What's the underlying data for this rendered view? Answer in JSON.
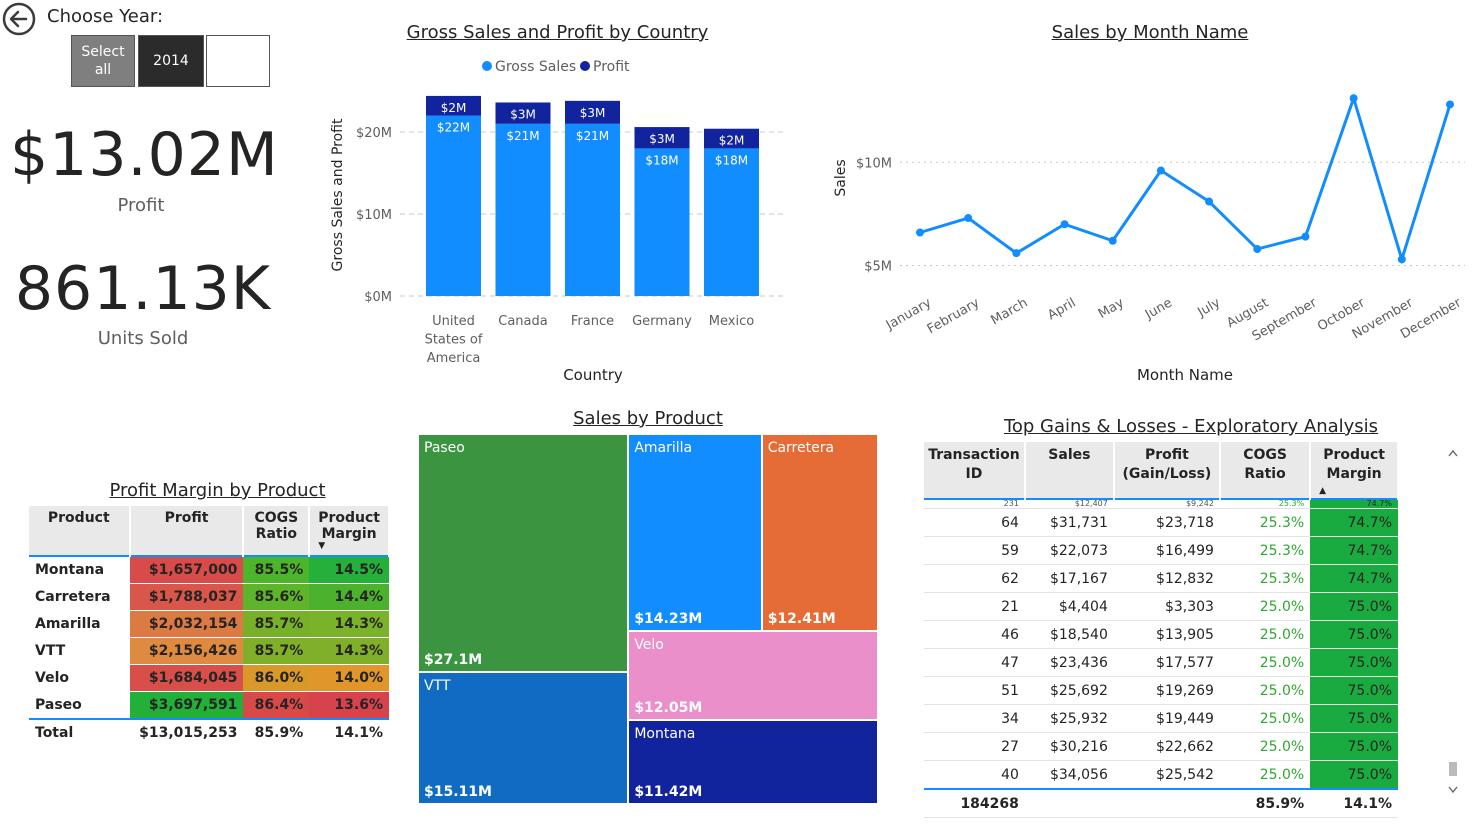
{
  "header": {
    "choose_year_label": "Choose Year:",
    "slicer": [
      {
        "label": "Select all",
        "selected": false
      },
      {
        "label": "2014",
        "selected": true
      },
      {
        "label": "",
        "selected": false
      }
    ]
  },
  "kpis": {
    "profit_value": "$13.02M",
    "profit_label": "Profit",
    "units_value": "861.13K",
    "units_label": "Units Sold"
  },
  "colors": {
    "gross_sales": "#118dff",
    "profit": "#12239e",
    "good": "#1aab40",
    "bad": "#d64550",
    "mid": "#e59b1c"
  },
  "gross_chart": {
    "title": "Gross Sales and Profit by Country",
    "legend": [
      "Gross Sales",
      "Profit"
    ],
    "xlabel": "Country",
    "ylabel": "Gross Sales and Profit",
    "yticks": [
      "$0M",
      "$10M",
      "$20M"
    ]
  },
  "month_chart": {
    "title": "Sales by Month Name",
    "xlabel": "Month Name",
    "ylabel": "Sales",
    "yticks": [
      "$5M",
      "$10M"
    ]
  },
  "chart_data": [
    {
      "type": "bar",
      "title": "Gross Sales and Profit by Country",
      "categories": [
        "United States of America",
        "Canada",
        "France",
        "Germany",
        "Mexico"
      ],
      "series": [
        {
          "name": "Gross Sales",
          "values": [
            22,
            21,
            21,
            18,
            18
          ],
          "labels": [
            "$22M",
            "$21M",
            "$21M",
            "$18M",
            "$18M"
          ]
        },
        {
          "name": "Profit",
          "values": [
            2.4,
            2.6,
            2.8,
            2.6,
            2.4
          ],
          "labels": [
            "$2M",
            "$3M",
            "$3M",
            "$3M",
            "$2M"
          ]
        }
      ],
      "stacked": true,
      "xlabel": "Country",
      "ylabel": "Gross Sales and Profit",
      "ylim": [
        0,
        25
      ],
      "grid": true,
      "legend_position": "top"
    },
    {
      "type": "line",
      "title": "Sales by Month Name",
      "categories": [
        "January",
        "February",
        "March",
        "April",
        "May",
        "June",
        "July",
        "August",
        "September",
        "October",
        "November",
        "December"
      ],
      "series": [
        {
          "values": [
            6.6,
            7.3,
            5.6,
            7.0,
            6.2,
            9.6,
            8.1,
            5.8,
            6.4,
            13.1,
            5.3,
            12.8
          ]
        }
      ],
      "xlabel": "Month Name",
      "ylabel": "Sales",
      "ylim": [
        4.3,
        13.5
      ],
      "grid": true
    },
    {
      "type": "treemap",
      "title": "Sales by Product",
      "items": [
        {
          "name": "Paseo",
          "value": 27.1,
          "label": "$27.1M",
          "color": "#3a9440"
        },
        {
          "name": "VTT",
          "value": 15.11,
          "label": "$15.11M",
          "color": "#116bc2"
        },
        {
          "name": "Amarilla",
          "value": 14.23,
          "label": "$14.23M",
          "color": "#118dff"
        },
        {
          "name": "Carretera",
          "value": 12.41,
          "label": "$12.41M",
          "color": "#e66c37"
        },
        {
          "name": "Velo",
          "value": 12.05,
          "label": "$12.05M",
          "color": "#eb8fcb"
        },
        {
          "name": "Montana",
          "value": 11.42,
          "label": "$11.42M",
          "color": "#12239e"
        }
      ]
    }
  ],
  "profit_margin": {
    "title": "Profit Margin by Product",
    "columns": [
      "Product",
      "Profit",
      "COGS Ratio",
      "Product Margin"
    ],
    "rows": [
      {
        "product": "Montana",
        "profit": "$1,657,000",
        "cogs": "85.5%",
        "margin": "14.5%",
        "profit_color": "#d94a4a",
        "cogs_color": "#4db52b",
        "margin_color": "#25b03c"
      },
      {
        "product": "Carretera",
        "profit": "$1,788,037",
        "cogs": "85.6%",
        "margin": "14.4%",
        "profit_color": "#d8574a",
        "cogs_color": "#5eb42a",
        "margin_color": "#4cb22e"
      },
      {
        "product": "Amarilla",
        "profit": "$2,032,154",
        "cogs": "85.7%",
        "margin": "14.3%",
        "profit_color": "#dc7a44",
        "cogs_color": "#78b129",
        "margin_color": "#7ab22a"
      },
      {
        "product": "VTT",
        "profit": "$2,156,426",
        "cogs": "85.7%",
        "margin": "14.3%",
        "profit_color": "#de8a40",
        "cogs_color": "#80b02a",
        "margin_color": "#80b02a"
      },
      {
        "product": "Velo",
        "profit": "$1,684,045",
        "cogs": "86.0%",
        "margin": "14.0%",
        "profit_color": "#d84f4a",
        "cogs_color": "#d9992a",
        "margin_color": "#e0962a"
      },
      {
        "product": "Paseo",
        "profit": "$3,697,591",
        "cogs": "86.4%",
        "margin": "13.6%",
        "profit_color": "#22b03a",
        "cogs_color": "#d84a4a",
        "margin_color": "#d6434d"
      }
    ],
    "total": {
      "label": "Total",
      "profit": "$13,015,253",
      "cogs": "85.9%",
      "margin": "14.1%"
    }
  },
  "top_gains": {
    "title": "Top Gains & Losses - Exploratory Analysis",
    "columns": [
      "Transaction ID",
      "Sales",
      "Profit (Gain/Loss)",
      "COGS Ratio",
      "Product Margin"
    ],
    "partial_row": {
      "id": "231",
      "sales": "$12,407",
      "profit": "$9,242",
      "cogs": "25.3%",
      "margin": "74.7%"
    },
    "rows": [
      {
        "id": "64",
        "sales": "$31,731",
        "profit": "$23,718",
        "cogs": "25.3%",
        "margin": "74.7%"
      },
      {
        "id": "59",
        "sales": "$22,073",
        "profit": "$16,499",
        "cogs": "25.3%",
        "margin": "74.7%"
      },
      {
        "id": "62",
        "sales": "$17,167",
        "profit": "$12,832",
        "cogs": "25.3%",
        "margin": "74.7%"
      },
      {
        "id": "21",
        "sales": "$4,404",
        "profit": "$3,303",
        "cogs": "25.0%",
        "margin": "75.0%"
      },
      {
        "id": "46",
        "sales": "$18,540",
        "profit": "$13,905",
        "cogs": "25.0%",
        "margin": "75.0%"
      },
      {
        "id": "47",
        "sales": "$23,436",
        "profit": "$17,577",
        "cogs": "25.0%",
        "margin": "75.0%"
      },
      {
        "id": "51",
        "sales": "$25,692",
        "profit": "$19,269",
        "cogs": "25.0%",
        "margin": "75.0%"
      },
      {
        "id": "34",
        "sales": "$25,932",
        "profit": "$19,449",
        "cogs": "25.0%",
        "margin": "75.0%"
      },
      {
        "id": "27",
        "sales": "$30,216",
        "profit": "$22,662",
        "cogs": "25.0%",
        "margin": "75.0%"
      },
      {
        "id": "40",
        "sales": "$34,056",
        "profit": "$25,542",
        "cogs": "25.0%",
        "margin": "75.0%"
      }
    ],
    "total": {
      "id": "184268",
      "cogs": "85.9%",
      "margin": "14.1%"
    }
  },
  "treemap_title": "Sales by Product"
}
